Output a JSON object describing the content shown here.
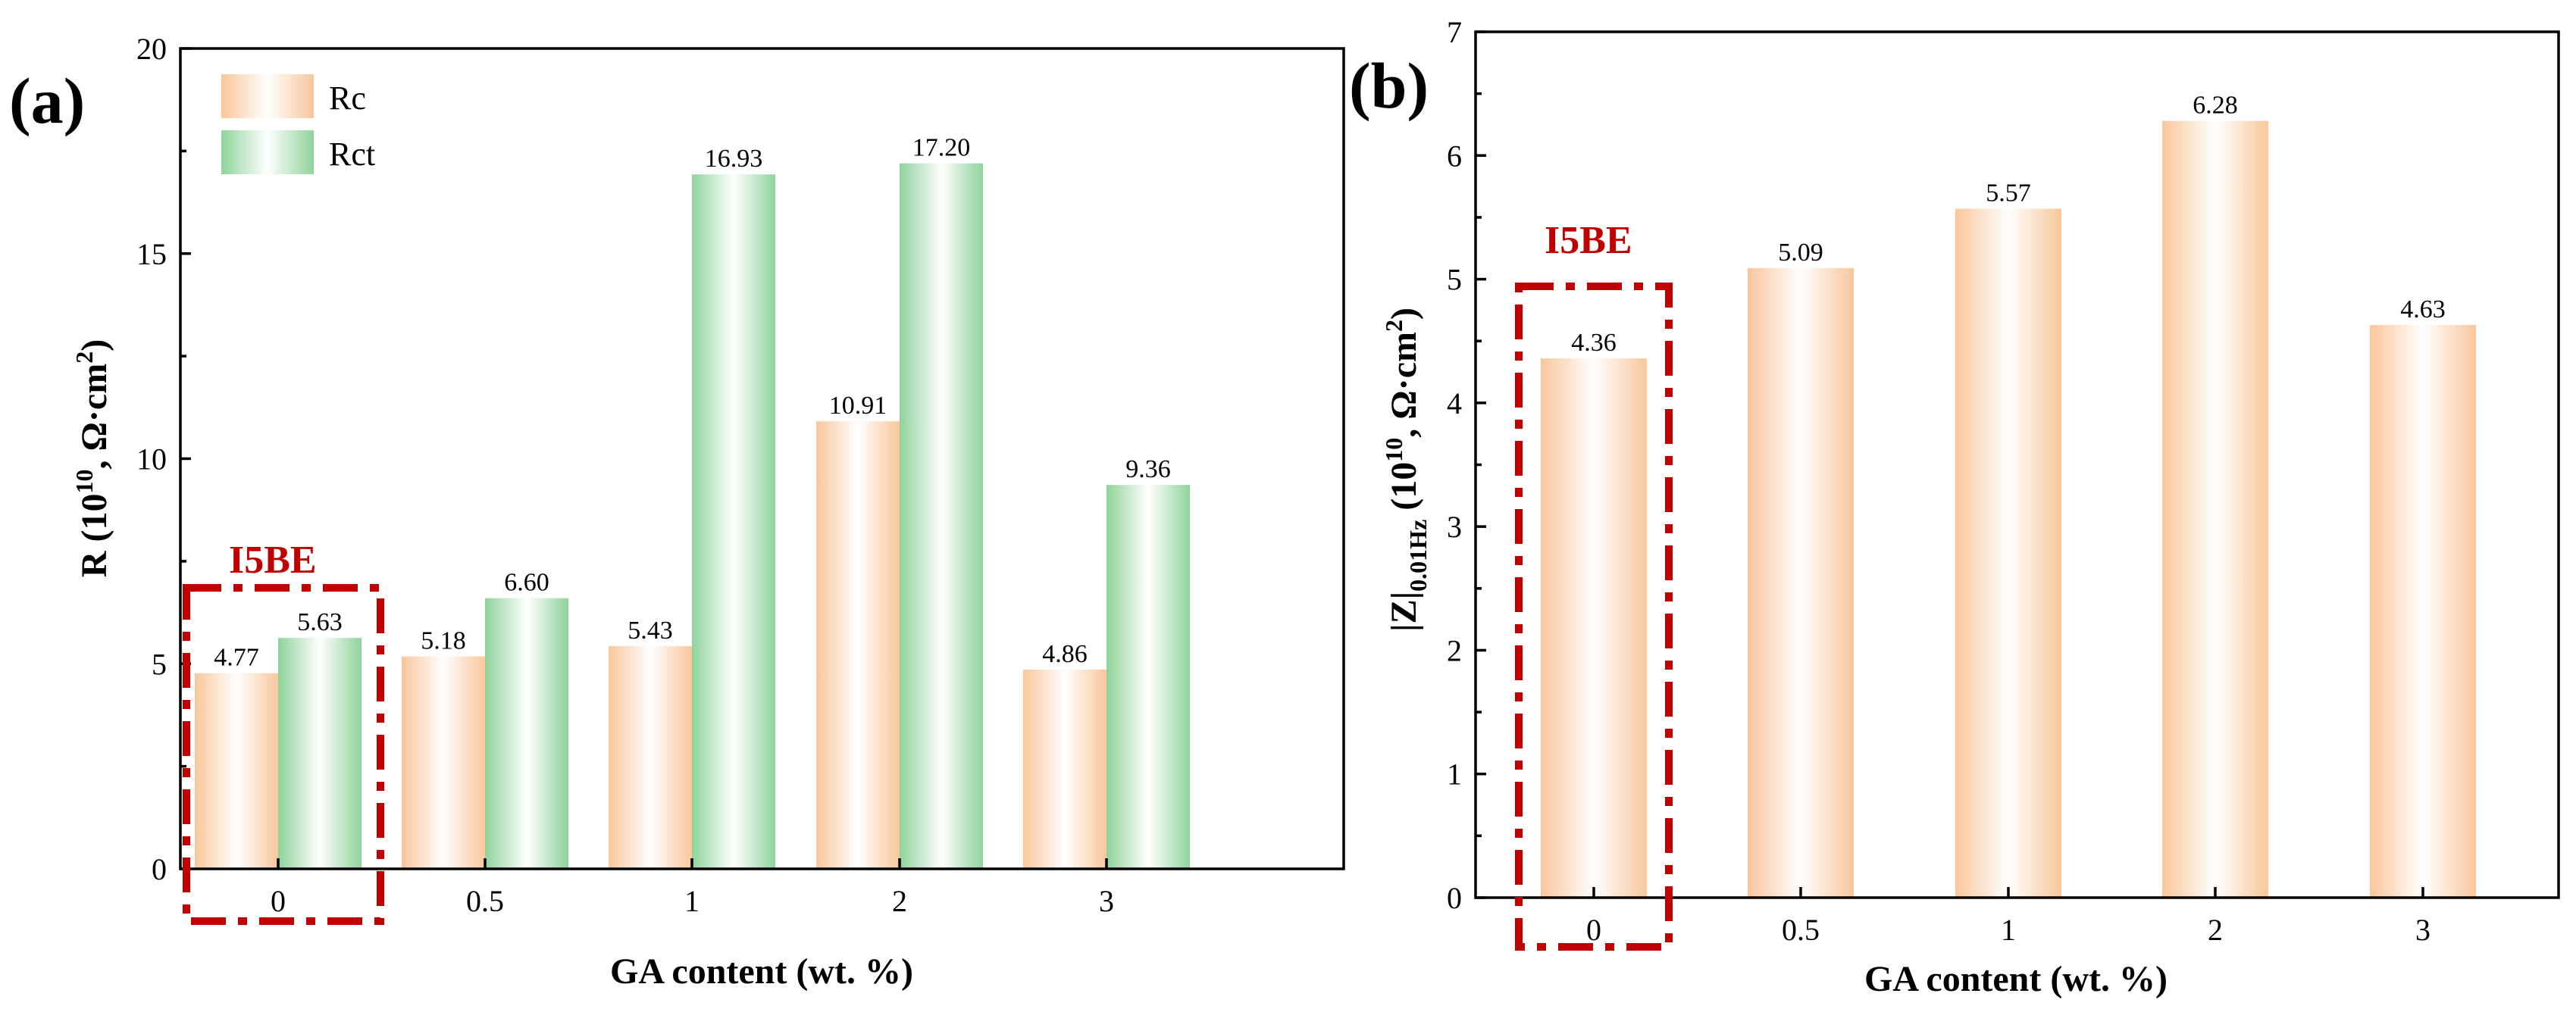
{
  "colors": {
    "rc_edge": "#f9c79c",
    "rct_edge": "#8fd39b",
    "annotation": "#c00000"
  },
  "chart_data": [
    {
      "panel_label": "(a)",
      "type": "bar",
      "categories": [
        "0",
        "0.5",
        "1",
        "2",
        "3"
      ],
      "series": [
        {
          "name": "Rc",
          "values": [
            4.77,
            5.18,
            5.43,
            10.91,
            4.86
          ],
          "labels": [
            "4.77",
            "5.18",
            "5.43",
            "10.91",
            "4.86"
          ]
        },
        {
          "name": "Rct",
          "values": [
            5.63,
            6.6,
            16.93,
            17.2,
            9.36
          ],
          "labels": [
            "5.63",
            "6.60",
            "16.93",
            "17.20",
            "9.36"
          ]
        }
      ],
      "xlabel": "GA content (wt. %)",
      "ylabel_main": "R (10",
      "ylabel_sup": "10",
      "ylabel_mid": ", Ω·cm",
      "ylabel_sup2": "2",
      "ylabel_end": ")",
      "ylim": [
        0,
        20
      ],
      "yticks": [
        "0",
        "5",
        "10",
        "15",
        "20"
      ],
      "legend": [
        "Rc",
        "Rct"
      ],
      "legend_position": "top-left",
      "annotation": "I5BE"
    },
    {
      "panel_label": "(b)",
      "type": "bar",
      "categories": [
        "0",
        "0.5",
        "1",
        "2",
        "3"
      ],
      "series": [
        {
          "values": [
            4.36,
            5.09,
            5.57,
            6.28,
            4.63
          ],
          "labels": [
            "4.36",
            "5.09",
            "5.57",
            "6.28",
            "4.63"
          ]
        }
      ],
      "xlabel": "GA content (wt. %)",
      "ylabel_main": "|Z|",
      "ylabel_sub": "0.01Hz",
      "ylabel_rest": " (10",
      "ylabel_sup": "10",
      "ylabel_mid": ", Ω·cm",
      "ylabel_sup2": "2",
      "ylabel_end": ")",
      "ylim": [
        0,
        7
      ],
      "yticks": [
        "0",
        "1",
        "2",
        "3",
        "4",
        "5",
        "6",
        "7"
      ],
      "annotation": "I5BE"
    }
  ]
}
